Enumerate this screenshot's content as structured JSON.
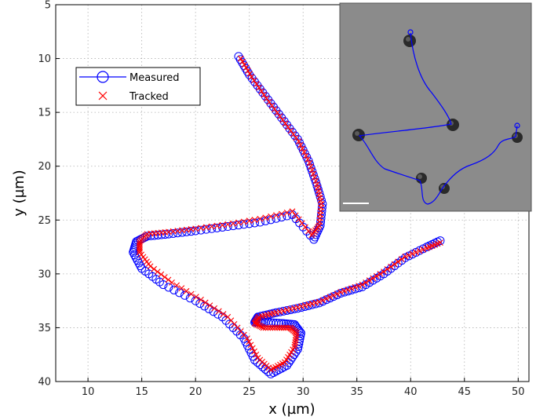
{
  "chart_data": {
    "type": "scatter",
    "xlabel": "x  (µm)",
    "ylabel": "y  (µm)",
    "xlim": [
      7,
      51
    ],
    "ylim": [
      5,
      40
    ],
    "y_reversed": true,
    "grid": true,
    "legend_placement": "top-left",
    "x_ticks": [
      10,
      15,
      20,
      25,
      30,
      35,
      40,
      45,
      50
    ],
    "y_ticks": [
      5,
      10,
      15,
      20,
      25,
      30,
      35,
      40
    ],
    "x_tick_labels": [
      "10",
      "15",
      "20",
      "25",
      "30",
      "35",
      "40",
      "45",
      "50"
    ],
    "y_tick_labels": [
      "5",
      "10",
      "15",
      "20",
      "25",
      "30",
      "35",
      "40"
    ],
    "series": [
      {
        "name": "Measured",
        "marker": "circle",
        "color": "#0000ff",
        "x": [
          24.0,
          25.0,
          26.5,
          28.0,
          29.5,
          30.5,
          31.2,
          31.8,
          31.6,
          31.0,
          29.0,
          26.0,
          23.0,
          20.0,
          17.5,
          15.5,
          14.5,
          14.2,
          15.0,
          17.0,
          20.0,
          22.5,
          24.5,
          25.5,
          27.0,
          28.5,
          29.5,
          29.8,
          29.2,
          28.0,
          26.5,
          25.5,
          25.8,
          27.5,
          29.5,
          31.5,
          33.5,
          35.5,
          37.5,
          39.5,
          41.5,
          43.0
        ],
        "y": [
          9.8,
          11.5,
          13.5,
          15.5,
          17.5,
          19.5,
          21.5,
          23.5,
          25.5,
          26.8,
          24.5,
          25.2,
          25.6,
          26.0,
          26.3,
          26.5,
          27.0,
          28.0,
          29.5,
          31.0,
          32.5,
          34.0,
          36.0,
          38.0,
          39.3,
          38.5,
          37.0,
          35.5,
          34.7,
          34.6,
          34.5,
          34.5,
          34.0,
          33.6,
          33.2,
          32.7,
          31.8,
          31.2,
          30.0,
          28.5,
          27.5,
          26.8
        ]
      },
      {
        "name": "Tracked",
        "marker": "x",
        "color": "#ff0000",
        "x": [
          24.2,
          25.2,
          26.6,
          28.1,
          29.6,
          30.6,
          31.3,
          31.7,
          31.5,
          30.8,
          29.0,
          26.0,
          23.0,
          20.0,
          17.5,
          15.5,
          14.8,
          14.8,
          15.8,
          17.8,
          20.5,
          23.0,
          24.8,
          25.8,
          27.0,
          28.3,
          29.2,
          29.4,
          28.8,
          27.6,
          26.3,
          25.5,
          25.9,
          27.5,
          29.5,
          31.5,
          33.5,
          35.5,
          37.5,
          39.5,
          41.5,
          43.0
        ],
        "y": [
          10.0,
          11.7,
          13.7,
          15.7,
          17.7,
          19.7,
          21.7,
          23.5,
          25.5,
          26.4,
          24.2,
          24.9,
          25.4,
          25.8,
          26.1,
          26.3,
          27.0,
          28.0,
          29.3,
          30.8,
          32.4,
          34.0,
          36.0,
          37.8,
          38.9,
          38.2,
          36.8,
          35.5,
          35.0,
          35.0,
          35.0,
          34.6,
          34.0,
          33.6,
          33.1,
          32.6,
          31.7,
          31.0,
          29.8,
          28.4,
          27.6,
          27.0
        ]
      }
    ],
    "inset": {
      "type": "microscopy-image-with-trajectory",
      "trajectory_color": "#0000ff",
      "background": "#8b8b8b",
      "has_scale_bar": true
    }
  }
}
